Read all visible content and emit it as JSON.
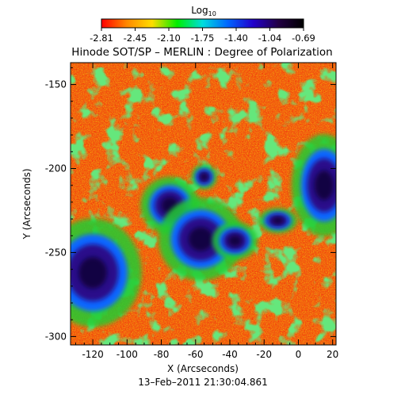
{
  "colorbar": {
    "label": "Log",
    "label_sub": "10",
    "ticks": [
      "-2.81",
      "-2.45",
      "-2.10",
      "-1.75",
      "-1.40",
      "-1.04",
      "-0.69"
    ],
    "stops": [
      "#ff0000",
      "#ff8800",
      "#ffdd00",
      "#00ee00",
      "#00dddd",
      "#0066ff",
      "#2200cc",
      "#220044",
      "#000000"
    ]
  },
  "title": "Hinode SOT/SP – MERLIN : Degree of Polarization",
  "timestamp": "13–Feb–2011 21:30:04.861",
  "map_colors": {
    "quiet": "#f05a10",
    "quiet_alt": "#ff8a00",
    "plage": "#22cc33",
    "plage_alt": "#ffe600",
    "penumbra": "#1166ff",
    "umbra": "#2a0a8a",
    "core": "#0b0430"
  },
  "chart_data": {
    "type": "heatmap",
    "xlabel": "X (Arcseconds)",
    "ylabel": "Y (Arcseconds)",
    "xlim": [
      -133,
      22
    ],
    "ylim": [
      -305,
      -137
    ],
    "x_ticks": [
      "-120",
      "-100",
      "-80",
      "-60",
      "-40",
      "-20",
      "0",
      "20"
    ],
    "x_tick_values": [
      -120,
      -100,
      -80,
      -60,
      -40,
      -20,
      0,
      20
    ],
    "y_ticks": [
      "-150",
      "-200",
      "-250",
      "-300"
    ],
    "y_tick_values": [
      -150,
      -200,
      -250,
      -300
    ],
    "sunspots": [
      {
        "x": -120,
        "y": -262,
        "rx": 15,
        "ry": 17
      },
      {
        "x": -75,
        "y": -222,
        "rx": 9,
        "ry": 9
      },
      {
        "x": -57,
        "y": -242,
        "rx": 13,
        "ry": 13
      },
      {
        "x": -37,
        "y": -243,
        "rx": 7,
        "ry": 6
      },
      {
        "x": 15,
        "y": -210,
        "rx": 10,
        "ry": 16
      },
      {
        "x": -12,
        "y": -231,
        "rx": 6,
        "ry": 4
      },
      {
        "x": -55,
        "y": -205,
        "rx": 4,
        "ry": 4
      }
    ]
  }
}
